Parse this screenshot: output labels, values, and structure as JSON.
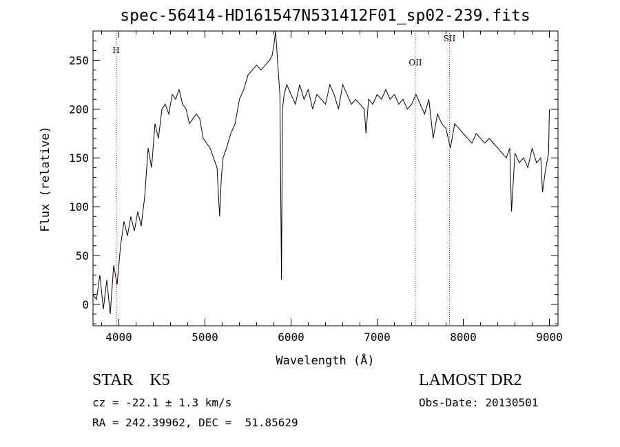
{
  "chart_data": {
    "type": "line",
    "title": "spec-56414-HD161547N531412F01_sp02-239.fits",
    "xlabel": "Wavelength (Å)",
    "ylabel": "Flux (relative)",
    "xlim": [
      3700,
      9100
    ],
    "ylim": [
      -22,
      280
    ],
    "xticks": [
      4000,
      5000,
      6000,
      7000,
      8000,
      9000
    ],
    "yticks": [
      0,
      50,
      100,
      150,
      200,
      250
    ],
    "grid": false,
    "line_markers": [
      {
        "label": "H",
        "x": 3968
      },
      {
        "label": "OII",
        "x": 7444
      },
      {
        "label": "SII",
        "x": 7840
      }
    ],
    "series": [
      {
        "x": [
          3700,
          3740,
          3780,
          3820,
          3860,
          3900,
          3940,
          3980,
          4020,
          4060,
          4100,
          4140,
          4180,
          4220,
          4260,
          4300,
          4340,
          4380,
          4420,
          4460,
          4500,
          4540,
          4580,
          4620,
          4660,
          4700,
          4740,
          4780,
          4820,
          4860,
          4900,
          4940,
          4980,
          5020,
          5060,
          5100,
          5140,
          5170,
          5190,
          5210,
          5250,
          5300,
          5350,
          5400,
          5450,
          5500,
          5550,
          5600,
          5650,
          5700,
          5750,
          5780,
          5800,
          5820,
          5850,
          5870,
          5889,
          5900,
          5920,
          5950,
          6000,
          6050,
          6100,
          6150,
          6200,
          6250,
          6300,
          6350,
          6400,
          6450,
          6500,
          6550,
          6600,
          6650,
          6700,
          6750,
          6800,
          6850,
          6870,
          6900,
          6950,
          7000,
          7050,
          7100,
          7150,
          7200,
          7250,
          7300,
          7350,
          7400,
          7450,
          7500,
          7550,
          7600,
          7650,
          7700,
          7750,
          7800,
          7850,
          7900,
          7950,
          8000,
          8050,
          8100,
          8150,
          8200,
          8250,
          8300,
          8350,
          8400,
          8450,
          8500,
          8540,
          8560,
          8600,
          8650,
          8700,
          8750,
          8800,
          8850,
          8900,
          8920,
          8950,
          8990,
          9000
        ],
        "values": [
          10,
          5,
          30,
          -5,
          25,
          -10,
          40,
          20,
          60,
          85,
          70,
          90,
          75,
          95,
          80,
          110,
          160,
          140,
          185,
          170,
          200,
          205,
          195,
          215,
          210,
          220,
          205,
          200,
          185,
          190,
          195,
          190,
          170,
          165,
          160,
          150,
          140,
          90,
          130,
          150,
          160,
          175,
          185,
          210,
          220,
          235,
          240,
          245,
          240,
          245,
          250,
          255,
          265,
          280,
          240,
          215,
          25,
          200,
          215,
          225,
          215,
          205,
          225,
          210,
          220,
          200,
          215,
          210,
          205,
          225,
          215,
          200,
          225,
          215,
          205,
          210,
          205,
          200,
          175,
          210,
          205,
          215,
          210,
          220,
          210,
          215,
          205,
          210,
          200,
          205,
          215,
          205,
          195,
          210,
          170,
          195,
          185,
          180,
          160,
          185,
          180,
          175,
          170,
          165,
          175,
          170,
          165,
          170,
          165,
          160,
          155,
          150,
          160,
          95,
          155,
          145,
          150,
          140,
          160,
          145,
          150,
          115,
          135,
          155,
          200
        ]
      }
    ]
  },
  "info": {
    "class_line": "STAR    K5",
    "survey": "LAMOST DR2",
    "cz_line": "cz = -22.1 ± 1.3 km/s",
    "obs_date": "Obs-Date: 20130501",
    "coords_line": "RA = 242.39962, DEC =  51.85629"
  }
}
